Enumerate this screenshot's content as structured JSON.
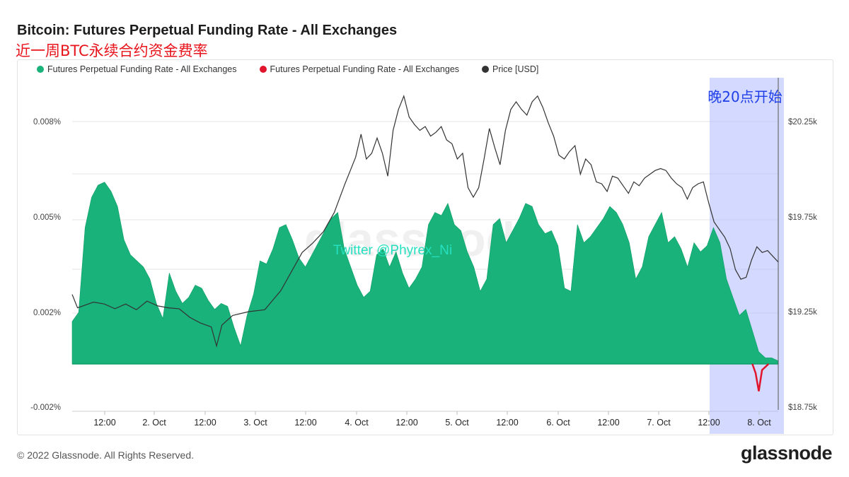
{
  "header": {
    "title": "Bitcoin: Futures Perpetual Funding Rate - All Exchanges",
    "subtitle": "近一周BTC永续合约资金费率"
  },
  "legend": {
    "items": [
      {
        "label": "Futures Perpetual Funding Rate - All Exchanges",
        "color": "#18b27a"
      },
      {
        "label": "Futures Perpetual Funding Rate - All Exchanges",
        "color": "#e0142b"
      },
      {
        "label": "Price [USD]",
        "color": "#333333"
      }
    ]
  },
  "annotations": {
    "highlight_label": "晚20点开始",
    "watermark_twitter": "Twitter @Phyrex_Ni",
    "watermark_brand": "glassnode"
  },
  "footer": {
    "copyright": "© 2022 Glassnode. All Rights Reserved.",
    "logo": "glassnode"
  },
  "chart_data": {
    "type": "area",
    "x_ticks": [
      "12:00",
      "2. Oct",
      "12:00",
      "3. Oct",
      "12:00",
      "4. Oct",
      "12:00",
      "5. Oct",
      "12:00",
      "6. Oct",
      "12:00",
      "7. Oct",
      "12:00",
      "8. Oct"
    ],
    "y_left": {
      "ticks": [
        "0.008%",
        "0.005%",
        "0.002%",
        "-0.002%"
      ],
      "range": [
        -0.002,
        0.009
      ]
    },
    "y_right": {
      "ticks": [
        "$20.25k",
        "$19.75k",
        "$19.25k",
        "$18.75k"
      ],
      "range": [
        18750,
        20750
      ]
    },
    "highlight": {
      "from": "2022-10-07T20:00",
      "to": "2022-10-08T08:00",
      "color": "#aab4ff"
    },
    "series": [
      {
        "name": "Futures Perpetual Funding Rate - All Exchanges",
        "axis": "left",
        "color": "#18b27a",
        "points": [
          [
            0.0,
            0.0014
          ],
          [
            2.0,
            0.0017
          ],
          [
            4.0,
            0.0045
          ],
          [
            6.0,
            0.0055
          ],
          [
            8.0,
            0.0059
          ],
          [
            10.0,
            0.006
          ],
          [
            12.0,
            0.0057
          ],
          [
            14.0,
            0.0052
          ],
          [
            16.0,
            0.0041
          ],
          [
            18.0,
            0.0036
          ],
          [
            20.0,
            0.0034
          ],
          [
            22.0,
            0.0032
          ],
          [
            24.0,
            0.0028
          ],
          [
            26.0,
            0.002
          ],
          [
            28.0,
            0.0015
          ],
          [
            30.0,
            0.003
          ],
          [
            32.0,
            0.0024
          ],
          [
            34.0,
            0.002
          ],
          [
            36.0,
            0.0022
          ],
          [
            38.0,
            0.0026
          ],
          [
            40.0,
            0.0025
          ],
          [
            42.0,
            0.0021
          ],
          [
            44.0,
            0.0018
          ],
          [
            46.0,
            0.002
          ],
          [
            48.0,
            0.0019
          ],
          [
            50.0,
            0.0012
          ],
          [
            52.0,
            0.0006
          ],
          [
            54.0,
            0.0016
          ],
          [
            56.0,
            0.0023
          ],
          [
            58.0,
            0.0034
          ],
          [
            60.0,
            0.0033
          ],
          [
            62.0,
            0.0038
          ],
          [
            64.0,
            0.0045
          ],
          [
            66.0,
            0.0046
          ],
          [
            68.0,
            0.0041
          ],
          [
            70.0,
            0.0035
          ],
          [
            72.0,
            0.0032
          ],
          [
            74.0,
            0.0036
          ],
          [
            76.0,
            0.004
          ],
          [
            78.0,
            0.0044
          ],
          [
            80.0,
            0.0048
          ],
          [
            82.0,
            0.005
          ],
          [
            84.0,
            0.0038
          ],
          [
            86.0,
            0.0032
          ],
          [
            88.0,
            0.0026
          ],
          [
            90.0,
            0.0022
          ],
          [
            92.0,
            0.0024
          ],
          [
            94.0,
            0.0036
          ],
          [
            96.0,
            0.0038
          ],
          [
            98.0,
            0.0032
          ],
          [
            100.0,
            0.0037
          ],
          [
            102.0,
            0.003
          ],
          [
            104.0,
            0.0025
          ],
          [
            106.0,
            0.0028
          ],
          [
            108.0,
            0.0032
          ],
          [
            110.0,
            0.0046
          ],
          [
            112.0,
            0.005
          ],
          [
            114.0,
            0.0049
          ],
          [
            116.0,
            0.0053
          ],
          [
            118.0,
            0.0046
          ],
          [
            120.0,
            0.0044
          ],
          [
            122.0,
            0.0037
          ],
          [
            124.0,
            0.0032
          ],
          [
            126.0,
            0.0024
          ],
          [
            128.0,
            0.0028
          ],
          [
            130.0,
            0.0046
          ],
          [
            132.0,
            0.0048
          ],
          [
            134.0,
            0.004
          ],
          [
            136.0,
            0.0044
          ],
          [
            138.0,
            0.0048
          ],
          [
            140.0,
            0.0053
          ],
          [
            142.0,
            0.0052
          ],
          [
            144.0,
            0.0046
          ],
          [
            146.0,
            0.0043
          ],
          [
            148.0,
            0.0044
          ],
          [
            150.0,
            0.0039
          ],
          [
            152.0,
            0.0025
          ],
          [
            154.0,
            0.0024
          ],
          [
            156.0,
            0.0046
          ],
          [
            158.0,
            0.004
          ],
          [
            160.0,
            0.0042
          ],
          [
            162.0,
            0.0045
          ],
          [
            164.0,
            0.0048
          ],
          [
            166.0,
            0.0052
          ],
          [
            168.0,
            0.005
          ],
          [
            170.0,
            0.0046
          ],
          [
            172.0,
            0.004
          ],
          [
            174.0,
            0.0028
          ],
          [
            176.0,
            0.0032
          ],
          [
            178.0,
            0.0042
          ],
          [
            180.0,
            0.0046
          ],
          [
            182.0,
            0.005
          ],
          [
            184.0,
            0.004
          ],
          [
            186.0,
            0.0042
          ],
          [
            188.0,
            0.0038
          ],
          [
            190.0,
            0.0032
          ],
          [
            192.0,
            0.004
          ],
          [
            194.0,
            0.0037
          ],
          [
            196.0,
            0.0039
          ],
          [
            198.0,
            0.0045
          ],
          [
            200.0,
            0.004
          ],
          [
            202.0,
            0.0028
          ],
          [
            204.0,
            0.0022
          ],
          [
            206.0,
            0.0016
          ],
          [
            208.0,
            0.0018
          ],
          [
            210.0,
            0.0011
          ],
          [
            212.0,
            0.0004
          ],
          [
            214.0,
            0.0002
          ],
          [
            216.0,
            0.0002
          ],
          [
            218.0,
            0.0001
          ]
        ]
      },
      {
        "name": "Futures Perpetual Funding Rate - All Exchanges",
        "axis": "left",
        "color": "#e0142b",
        "points": [
          [
            210.0,
            0.0
          ],
          [
            211.0,
            -0.0003
          ],
          [
            212.0,
            -0.0009
          ],
          [
            213.0,
            -0.0002
          ],
          [
            214.0,
            -0.0001
          ],
          [
            215.0,
            0.0
          ]
        ]
      },
      {
        "name": "Price [USD]",
        "axis": "right",
        "color": "#333333",
        "points": [
          [
            0.0,
            19340
          ],
          [
            2.0,
            19270
          ],
          [
            4.0,
            19280
          ],
          [
            8.0,
            19300
          ],
          [
            12.0,
            19290
          ],
          [
            16.0,
            19265
          ],
          [
            20.0,
            19290
          ],
          [
            24.0,
            19260
          ],
          [
            28.0,
            19305
          ],
          [
            32.0,
            19280
          ],
          [
            36.0,
            19270
          ],
          [
            40.0,
            19265
          ],
          [
            44.0,
            19220
          ],
          [
            48.0,
            19190
          ],
          [
            52.0,
            19170
          ],
          [
            54.0,
            19070
          ],
          [
            56.0,
            19180
          ],
          [
            60.0,
            19230
          ],
          [
            66.0,
            19250
          ],
          [
            72.0,
            19260
          ],
          [
            78.0,
            19360
          ],
          [
            82.0,
            19460
          ],
          [
            86.0,
            19560
          ],
          [
            90.0,
            19610
          ],
          [
            94.0,
            19670
          ],
          [
            98.0,
            19770
          ],
          [
            102.0,
            19920
          ],
          [
            104.0,
            19990
          ],
          [
            106.0,
            20060
          ],
          [
            108.0,
            20180
          ],
          [
            110.0,
            20050
          ],
          [
            112.0,
            20080
          ],
          [
            114.0,
            20160
          ],
          [
            116.0,
            20080
          ],
          [
            118.0,
            19960
          ],
          [
            120.0,
            20200
          ],
          [
            122.0,
            20310
          ],
          [
            124.0,
            20380
          ],
          [
            126.0,
            20270
          ],
          [
            128.0,
            20230
          ],
          [
            130.0,
            20200
          ],
          [
            132.0,
            20220
          ],
          [
            134.0,
            20170
          ],
          [
            136.0,
            20190
          ],
          [
            138.0,
            20220
          ],
          [
            140.0,
            20150
          ],
          [
            142.0,
            20130
          ],
          [
            144.0,
            20050
          ],
          [
            146.0,
            20080
          ],
          [
            148.0,
            19900
          ],
          [
            150.0,
            19850
          ],
          [
            152.0,
            19900
          ],
          [
            154.0,
            20050
          ],
          [
            156.0,
            20210
          ],
          [
            158.0,
            20110
          ],
          [
            160.0,
            20020
          ],
          [
            162.0,
            20200
          ],
          [
            164.0,
            20310
          ],
          [
            166.0,
            20350
          ],
          [
            168.0,
            20310
          ],
          [
            170.0,
            20280
          ],
          [
            172.0,
            20350
          ],
          [
            174.0,
            20380
          ],
          [
            176.0,
            20320
          ],
          [
            178.0,
            20240
          ],
          [
            180.0,
            20170
          ],
          [
            182.0,
            20070
          ],
          [
            184.0,
            20050
          ],
          [
            186.0,
            20090
          ],
          [
            188.0,
            20120
          ],
          [
            190.0,
            19970
          ],
          [
            192.0,
            20050
          ],
          [
            194.0,
            20020
          ],
          [
            196.0,
            19930
          ],
          [
            198.0,
            19920
          ],
          [
            200.0,
            19880
          ],
          [
            202.0,
            19960
          ],
          [
            204.0,
            19950
          ],
          [
            206.0,
            19910
          ],
          [
            208.0,
            19870
          ],
          [
            210.0,
            19930
          ],
          [
            212.0,
            19910
          ],
          [
            214.0,
            19950
          ],
          [
            216.0,
            19970
          ],
          [
            218.0,
            19990
          ],
          [
            220.0,
            20000
          ],
          [
            222.0,
            19990
          ],
          [
            224.0,
            19950
          ],
          [
            226.0,
            19920
          ],
          [
            228.0,
            19900
          ],
          [
            230.0,
            19840
          ],
          [
            232.0,
            19900
          ],
          [
            234.0,
            19920
          ],
          [
            236.0,
            19930
          ],
          [
            238.0,
            19820
          ],
          [
            240.0,
            19720
          ],
          [
            242.0,
            19680
          ],
          [
            244.0,
            19640
          ],
          [
            246.0,
            19580
          ],
          [
            248.0,
            19470
          ],
          [
            250.0,
            19420
          ],
          [
            252.0,
            19430
          ],
          [
            254.0,
            19520
          ],
          [
            256.0,
            19590
          ],
          [
            258.0,
            19560
          ],
          [
            260.0,
            19570
          ],
          [
            262.0,
            19540
          ],
          [
            264.0,
            19510
          ]
        ]
      }
    ]
  }
}
